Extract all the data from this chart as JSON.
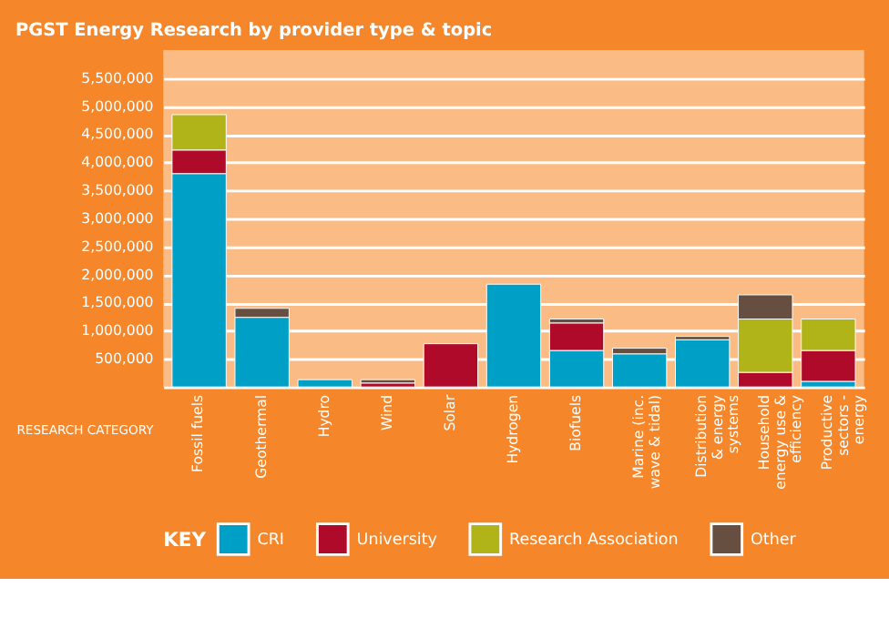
{
  "chart_data": {
    "type": "bar",
    "title": "PGST Energy Research by provider type & topic",
    "xlabel": "RESEARCH CATEGORY",
    "legend_title": "KEY",
    "categories": [
      "Fossil fuels",
      "Geothermal",
      "Hydro",
      "Wind",
      "Solar",
      "Hydrogen",
      "Biofuels",
      "Marine (inc. wave & tidal)",
      "Distribution & energy systems",
      "Household energy use & efficiency",
      "Productive sectors - energy"
    ],
    "stacked": true,
    "series": [
      {
        "name": "CRI",
        "color": "#00a0c6",
        "values": [
          3800000,
          1240000,
          130000,
          null,
          null,
          1830000,
          650000,
          590000,
          840000,
          null,
          100000
        ]
      },
      {
        "name": "University",
        "color": "#b00a2a",
        "values": [
          420000,
          null,
          null,
          70000,
          770000,
          null,
          490000,
          null,
          null,
          260000,
          550000
        ]
      },
      {
        "name": "Research Association",
        "color": "#b0b419",
        "values": [
          630000,
          null,
          null,
          null,
          null,
          null,
          null,
          null,
          null,
          950000,
          560000
        ]
      },
      {
        "name": "Other",
        "color": "#664e40",
        "values": [
          null,
          160000,
          null,
          60000,
          null,
          null,
          70000,
          100000,
          60000,
          430000,
          null
        ]
      }
    ],
    "ylim": [
      0,
      6000000
    ],
    "yticks": [
      {
        "value": 500000,
        "label": "500,000"
      },
      {
        "value": 1000000,
        "label": "1,000,000"
      },
      {
        "value": 1500000,
        "label": "1,500,000"
      },
      {
        "value": 2000000,
        "label": "2,000,000"
      },
      {
        "value": 2500000,
        "label": "2,500,000"
      },
      {
        "value": 3000000,
        "label": "3,000,000"
      },
      {
        "value": 3500000,
        "label": "3,500,000"
      },
      {
        "value": 4000000,
        "label": "4,000,000"
      },
      {
        "value": 4500000,
        "label": "4,500,000"
      },
      {
        "value": 5000000,
        "label": "5,000,000"
      },
      {
        "value": 5500000,
        "label": "5,500,000"
      }
    ],
    "grid": "y",
    "legend": "bottom"
  }
}
